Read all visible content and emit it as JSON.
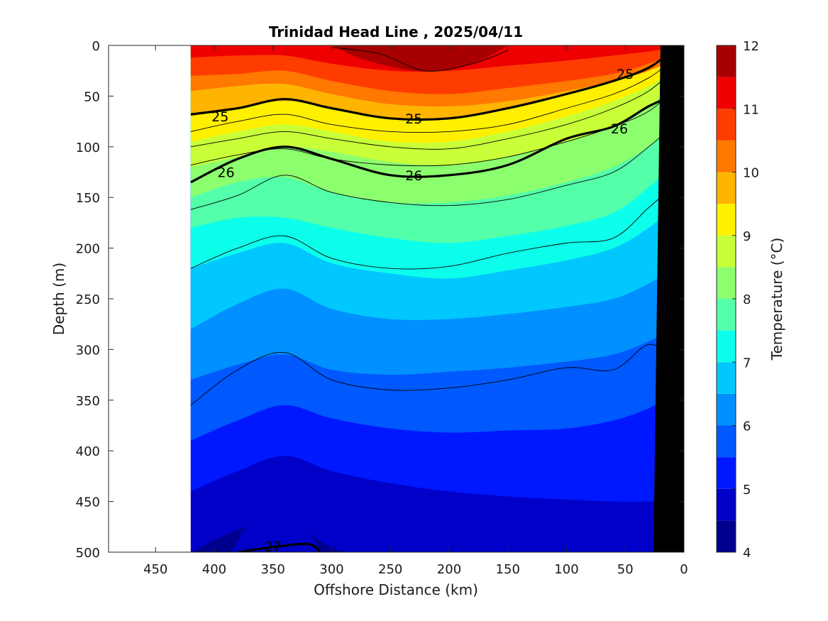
{
  "chart_data": {
    "type": "heatmap",
    "title": "Trinidad Head Line , 2025/04/11",
    "xlabel": "Offshore Distance (km)",
    "ylabel": "Depth (m)",
    "colorbar_label": "Temperature (°C)",
    "xlim": [
      490,
      0
    ],
    "ylim": [
      0,
      500
    ],
    "x_reversed": true,
    "y_reversed": true,
    "xticks": [
      450,
      400,
      350,
      300,
      250,
      200,
      150,
      100,
      50,
      0
    ],
    "yticks": [
      0,
      50,
      100,
      150,
      200,
      250,
      300,
      350,
      400,
      450,
      500
    ],
    "colorbar_ticks": [
      4,
      5,
      6,
      7,
      8,
      9,
      10,
      11,
      12
    ],
    "colorbar_range": [
      4,
      12
    ],
    "color_levels": [
      {
        "from": 4.0,
        "to": 4.5,
        "color": "#00008f"
      },
      {
        "from": 4.5,
        "to": 5.0,
        "color": "#0000c8"
      },
      {
        "from": 5.0,
        "to": 5.5,
        "color": "#0018ff"
      },
      {
        "from": 5.5,
        "to": 6.0,
        "color": "#0058ff"
      },
      {
        "from": 6.0,
        "to": 6.5,
        "color": "#0090ff"
      },
      {
        "from": 6.5,
        "to": 7.0,
        "color": "#00c8ff"
      },
      {
        "from": 7.0,
        "to": 7.5,
        "color": "#0cffea"
      },
      {
        "from": 7.5,
        "to": 8.0,
        "color": "#54ffaa"
      },
      {
        "from": 8.0,
        "to": 8.5,
        "color": "#8cff6e"
      },
      {
        "from": 8.5,
        "to": 9.0,
        "color": "#c8ff38"
      },
      {
        "from": 9.0,
        "to": 9.5,
        "color": "#fff000"
      },
      {
        "from": 9.5,
        "to": 10.0,
        "color": "#ffb400"
      },
      {
        "from": 10.0,
        "to": 10.5,
        "color": "#ff7800"
      },
      {
        "from": 10.5,
        "to": 11.0,
        "color": "#ff3c00"
      },
      {
        "from": 11.0,
        "to": 11.5,
        "color": "#ee0000"
      },
      {
        "from": 11.5,
        "to": 12.0,
        "color": "#a80000"
      }
    ],
    "data_extent_km": [
      420,
      0
    ],
    "bathymetry": {
      "color": "#000000",
      "points": [
        [
          20,
          0
        ],
        [
          26,
          500
        ],
        [
          0,
          500
        ],
        [
          0,
          0
        ]
      ]
    },
    "isotherm_depths_m": {
      "x_km": [
        420,
        380,
        340,
        300,
        250,
        200,
        150,
        100,
        60,
        30,
        10
      ],
      "t_11": [
        12,
        10,
        10,
        18,
        25,
        25,
        20,
        15,
        10,
        6,
        2
      ],
      "t_10_5": [
        30,
        28,
        25,
        35,
        45,
        48,
        42,
        35,
        28,
        18,
        8
      ],
      "t_10": [
        45,
        40,
        38,
        48,
        58,
        60,
        55,
        45,
        35,
        25,
        15
      ],
      "t_9_5": [
        70,
        62,
        55,
        62,
        72,
        72,
        62,
        48,
        35,
        25,
        15
      ],
      "t_9": [
        95,
        85,
        78,
        85,
        95,
        95,
        85,
        70,
        55,
        40,
        25
      ],
      "t_8_5": [
        120,
        110,
        100,
        105,
        115,
        118,
        110,
        95,
        80,
        60,
        40
      ],
      "t_8": [
        150,
        135,
        130,
        145,
        155,
        155,
        148,
        135,
        120,
        100,
        80
      ],
      "t_7_5": [
        180,
        170,
        170,
        180,
        190,
        195,
        188,
        178,
        165,
        140,
        120
      ],
      "t_7": [
        220,
        205,
        195,
        215,
        225,
        230,
        222,
        212,
        200,
        180,
        160
      ],
      "t_6_5": [
        280,
        255,
        240,
        260,
        270,
        270,
        265,
        258,
        250,
        235,
        220
      ],
      "t_6": [
        330,
        315,
        305,
        320,
        325,
        322,
        318,
        312,
        305,
        292,
        280
      ],
      "t_5_5": [
        390,
        370,
        355,
        368,
        378,
        382,
        380,
        378,
        370,
        358,
        345
      ],
      "t_5": [
        440,
        420,
        405,
        420,
        432,
        440,
        445,
        448,
        450,
        450,
        450
      ],
      "t_4_5": [
        500,
        478,
        468,
        495,
        510,
        510,
        510,
        510,
        510,
        510,
        510
      ]
    },
    "isopycnals": [
      {
        "sigma": "25",
        "bold": true,
        "x_km": [
          420,
          380,
          340,
          300,
          250,
          200,
          150,
          100,
          60,
          30,
          10
        ],
        "depth_m": [
          68,
          62,
          53,
          62,
          72,
          72,
          62,
          48,
          35,
          22,
          5
        ]
      },
      {
        "sigma": "26",
        "bold": true,
        "x_km": [
          420,
          380,
          340,
          300,
          250,
          200,
          150,
          100,
          60,
          30,
          10
        ],
        "depth_m": [
          135,
          112,
          100,
          112,
          128,
          128,
          118,
          92,
          80,
          60,
          50
        ]
      },
      {
        "sigma": "27",
        "bold": true,
        "x_km": [
          380,
          350,
          320,
          310
        ],
        "depth_m": [
          500,
          495,
          492,
          500
        ]
      },
      {
        "sigma": "",
        "bold": false,
        "x_km": [
          420,
          380,
          340,
          300,
          250,
          200,
          150,
          100,
          60,
          30,
          10
        ],
        "depth_m": [
          85,
          75,
          68,
          78,
          85,
          85,
          78,
          62,
          48,
          32,
          15
        ]
      },
      {
        "sigma": "",
        "bold": false,
        "x_km": [
          420,
          380,
          340,
          300,
          250,
          200,
          150,
          100,
          60,
          30,
          10
        ],
        "depth_m": [
          100,
          92,
          85,
          92,
          100,
          102,
          92,
          78,
          62,
          45,
          25
        ]
      },
      {
        "sigma": "",
        "bold": false,
        "x_km": [
          420,
          380,
          340,
          300,
          250,
          200,
          150,
          100,
          60,
          30,
          10
        ],
        "depth_m": [
          118,
          108,
          102,
          112,
          118,
          118,
          110,
          95,
          80,
          65,
          45
        ]
      },
      {
        "sigma": "",
        "bold": false,
        "x_km": [
          420,
          380,
          340,
          300,
          250,
          200,
          150,
          100,
          60,
          30,
          10
        ],
        "depth_m": [
          162,
          148,
          128,
          145,
          155,
          158,
          152,
          138,
          125,
          100,
          80
        ]
      },
      {
        "sigma": "",
        "bold": false,
        "x_km": [
          420,
          380,
          340,
          300,
          250,
          200,
          150,
          100,
          60,
          30,
          10
        ],
        "depth_m": [
          220,
          200,
          188,
          210,
          220,
          218,
          205,
          195,
          190,
          160,
          140
        ]
      },
      {
        "sigma": "",
        "bold": false,
        "x_km": [
          420,
          380,
          340,
          300,
          250,
          200,
          150,
          100,
          60,
          30,
          10
        ],
        "depth_m": [
          355,
          320,
          303,
          330,
          340,
          338,
          330,
          318,
          320,
          295,
          310
        ]
      },
      {
        "sigma": "",
        "bold": false,
        "x_km": [
          300,
          260,
          220,
          180,
          150
        ],
        "depth_m": [
          2,
          8,
          25,
          18,
          5
        ]
      }
    ]
  }
}
